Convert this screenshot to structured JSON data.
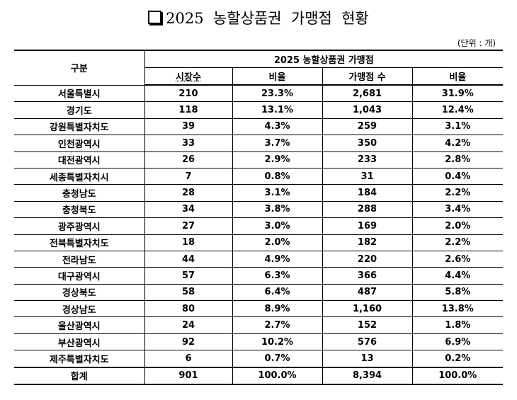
{
  "title": "2025  농할상품권  가맹점  현황",
  "unit": "(단위 : 개)",
  "table": {
    "header_group": "구분",
    "header_span": "2025 농할상품권 가맹점",
    "columns": [
      "시장수",
      "비율",
      "가맹점 수",
      "비율"
    ],
    "rows": [
      {
        "region": "서울특별시",
        "markets": "210",
        "markets_ratio": "23.3%",
        "stores": "2,681",
        "stores_ratio": "31.9%"
      },
      {
        "region": "경기도",
        "markets": "118",
        "markets_ratio": "13.1%",
        "stores": "1,043",
        "stores_ratio": "12.4%"
      },
      {
        "region": "강원특별자치도",
        "markets": "39",
        "markets_ratio": "4.3%",
        "stores": "259",
        "stores_ratio": "3.1%"
      },
      {
        "region": "인천광역시",
        "markets": "33",
        "markets_ratio": "3.7%",
        "stores": "350",
        "stores_ratio": "4.2%"
      },
      {
        "region": "대전광역시",
        "markets": "26",
        "markets_ratio": "2.9%",
        "stores": "233",
        "stores_ratio": "2.8%"
      },
      {
        "region": "세종특별자치시",
        "markets": "7",
        "markets_ratio": "0.8%",
        "stores": "31",
        "stores_ratio": "0.4%"
      },
      {
        "region": "충청남도",
        "markets": "28",
        "markets_ratio": "3.1%",
        "stores": "184",
        "stores_ratio": "2.2%"
      },
      {
        "region": "충청북도",
        "markets": "34",
        "markets_ratio": "3.8%",
        "stores": "288",
        "stores_ratio": "3.4%"
      },
      {
        "region": "광주광역시",
        "markets": "27",
        "markets_ratio": "3.0%",
        "stores": "169",
        "stores_ratio": "2.0%"
      },
      {
        "region": "전북특별자치도",
        "markets": "18",
        "markets_ratio": "2.0%",
        "stores": "182",
        "stores_ratio": "2.2%"
      },
      {
        "region": "전라남도",
        "markets": "44",
        "markets_ratio": "4.9%",
        "stores": "220",
        "stores_ratio": "2.6%"
      },
      {
        "region": "대구광역시",
        "markets": "57",
        "markets_ratio": "6.3%",
        "stores": "366",
        "stores_ratio": "4.4%"
      },
      {
        "region": "경상북도",
        "markets": "58",
        "markets_ratio": "6.4%",
        "stores": "487",
        "stores_ratio": "5.8%"
      },
      {
        "region": "경상남도",
        "markets": "80",
        "markets_ratio": "8.9%",
        "stores": "1,160",
        "stores_ratio": "13.8%"
      },
      {
        "region": "울산광역시",
        "markets": "24",
        "markets_ratio": "2.7%",
        "stores": "152",
        "stores_ratio": "1.8%"
      },
      {
        "region": "부산광역시",
        "markets": "92",
        "markets_ratio": "10.2%",
        "stores": "576",
        "stores_ratio": "6.9%"
      },
      {
        "region": "제주특별자치도",
        "markets": "6",
        "markets_ratio": "0.7%",
        "stores": "13",
        "stores_ratio": "0.2%"
      }
    ],
    "total": {
      "region": "합계",
      "markets": "901",
      "markets_ratio": "100.0%",
      "stores": "8,394",
      "stores_ratio": "100.0%"
    }
  }
}
